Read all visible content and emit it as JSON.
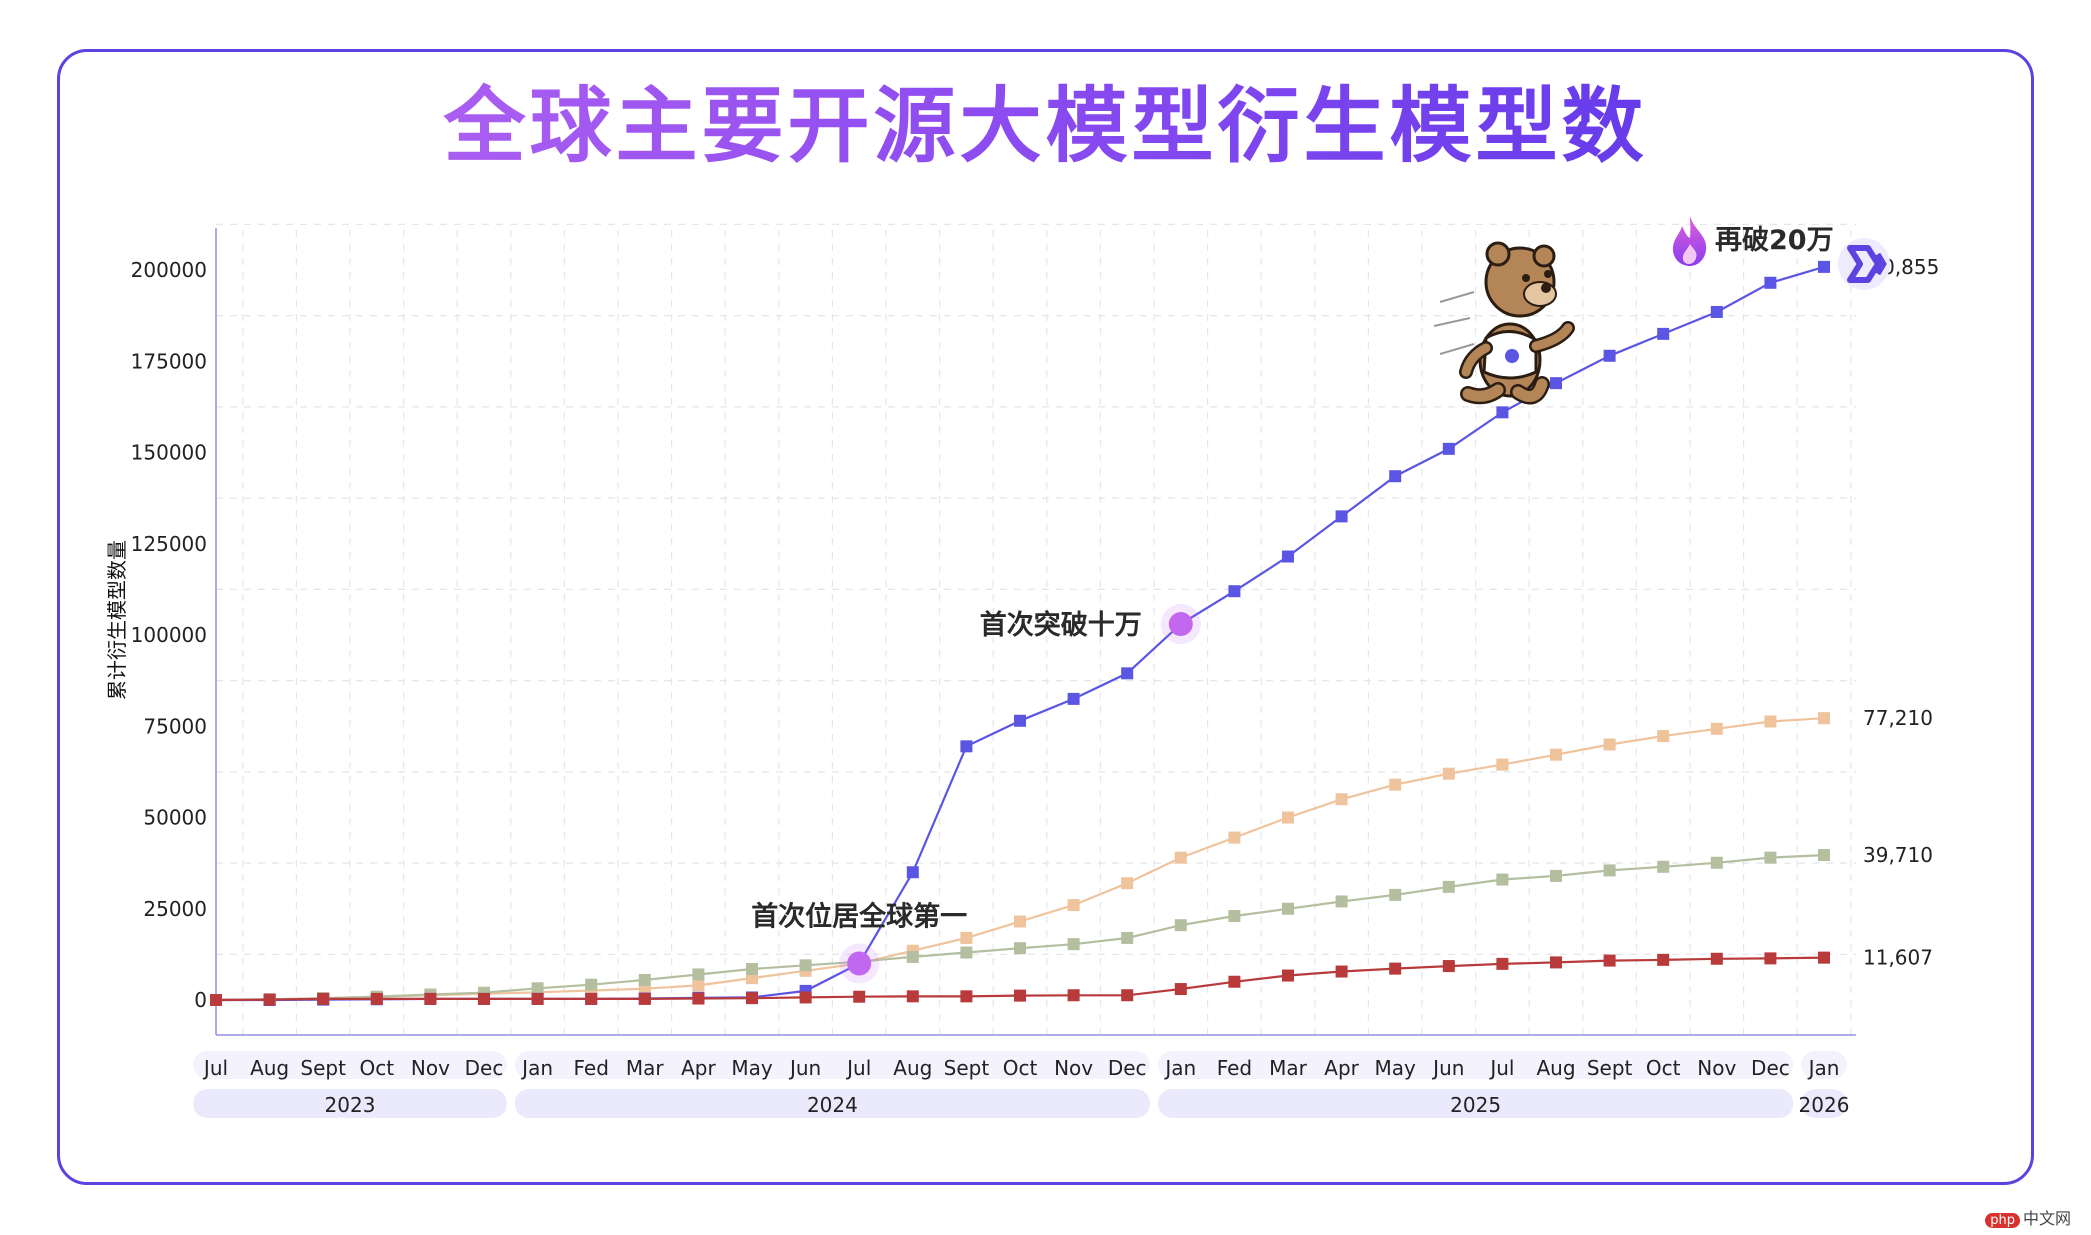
{
  "title": "全球主要开源大模型衍生模型数",
  "watermark": {
    "badge": "php",
    "text": "中文网"
  },
  "annotations": {
    "first_global": "首次位居全球第一",
    "first_100k": "首次突破十万",
    "again_200k": "再破20万"
  },
  "colors": {
    "blue": "#5b55e4",
    "peach": "#efc39c",
    "sage": "#b3bf9f",
    "red": "#b83a3a",
    "purple": "#c267f0"
  },
  "icons": [
    "flame-icon",
    "qwen-logo-icon",
    "running-bear-mascot"
  ],
  "chart_data": {
    "type": "line",
    "title": "全球主要开源大模型衍生模型数",
    "ylabel": "累计衍生模型数量",
    "xlabel": "",
    "ylim": [
      0,
      210000
    ],
    "yticks": [
      0,
      25000,
      50000,
      75000,
      100000,
      125000,
      150000,
      175000,
      200000
    ],
    "grid": true,
    "categories": [
      "Jul",
      "Aug",
      "Sept",
      "Oct",
      "Nov",
      "Dec",
      "Jan",
      "Fed",
      "Mar",
      "Apr",
      "May",
      "Jun",
      "Jul",
      "Aug",
      "Sept",
      "Oct",
      "Nov",
      "Dec",
      "Jan",
      "Fed",
      "Mar",
      "Apr",
      "May",
      "Jun",
      "Jul",
      "Aug",
      "Sept",
      "Oct",
      "Nov",
      "Dec",
      "Jan"
    ],
    "years": [
      {
        "label": "2023",
        "start": 0,
        "end": 5
      },
      {
        "label": "2024",
        "start": 6,
        "end": 17
      },
      {
        "label": "2025",
        "start": 18,
        "end": 29
      },
      {
        "label": "2026",
        "start": 30,
        "end": 30
      }
    ],
    "series": [
      {
        "color": "#efc39c",
        "values": [
          0,
          200,
          500,
          900,
          1300,
          1700,
          2100,
          2600,
          3100,
          4000,
          6000,
          8000,
          10000,
          13500,
          17000,
          21500,
          26000,
          32000,
          39000,
          44500,
          50000,
          55000,
          59000,
          62000,
          64500,
          67200,
          70000,
          72300,
          74300,
          76300,
          77210
        ],
        "end_label": "77,210"
      },
      {
        "color": "#b3bf9f",
        "values": [
          0,
          200,
          500,
          900,
          1500,
          2000,
          3200,
          4200,
          5500,
          7000,
          8500,
          9500,
          10500,
          11800,
          13000,
          14200,
          15300,
          17000,
          20500,
          23000,
          25000,
          27000,
          28800,
          31000,
          33000,
          34000,
          35500,
          36500,
          37600,
          39000,
          39710
        ],
        "end_label": "39,710"
      },
      {
        "color": "#5b55e4",
        "values": [
          0,
          0,
          100,
          200,
          300,
          300,
          300,
          300,
          400,
          600,
          700,
          2500,
          10000,
          35000,
          69500,
          76500,
          82500,
          89500,
          103000,
          112000,
          121500,
          132500,
          143500,
          151000,
          161000,
          169000,
          176500,
          182500,
          188500,
          196500,
          200855
        ],
        "end_label": "200,855"
      },
      {
        "color": "#b83a3a",
        "values": [
          0,
          100,
          300,
          300,
          300,
          300,
          300,
          300,
          300,
          400,
          500,
          700,
          900,
          1000,
          1000,
          1200,
          1300,
          1300,
          3000,
          5000,
          6700,
          7800,
          8600,
          9300,
          9900,
          10300,
          10800,
          11000,
          11300,
          11400,
          11607
        ],
        "end_label": "11,607"
      }
    ],
    "markers": [
      {
        "label_key": "first_global",
        "index": 12,
        "value": 10000
      },
      {
        "label_key": "first_100k",
        "index": 18,
        "value": 103000
      },
      {
        "label_key": "again_200k",
        "index": 30,
        "value": 200855
      }
    ]
  }
}
